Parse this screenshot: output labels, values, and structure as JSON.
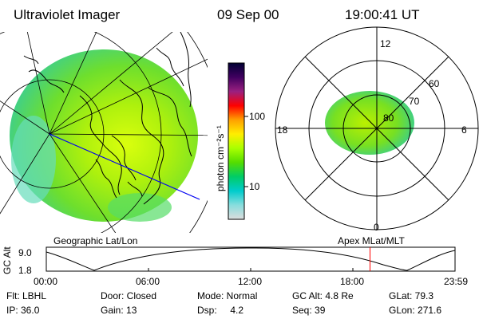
{
  "header": {
    "title": "Ultraviolet Imager",
    "date": "09 Sep 00",
    "time": "19:00:41 UT"
  },
  "colorbar": {
    "unit_label": "photon cm⁻²s⁻¹",
    "ticks": [
      "100",
      "10"
    ],
    "scale": "log",
    "colors": [
      "#000033",
      "#400060",
      "#9a2080",
      "#ff0000",
      "#ffa000",
      "#ffee00",
      "#aaff00",
      "#55dd00",
      "#00cc66",
      "#00cccc",
      "#88dddd",
      "#dddddd"
    ]
  },
  "left_panel": {
    "label": "Geographic Lat/Lon"
  },
  "right_panel": {
    "label": "Apex  MLat/MLT",
    "mlt_labels": {
      "top": "12",
      "left": "18",
      "right": "6",
      "bottom": "0"
    },
    "lat_labels": [
      "60",
      "70",
      "80"
    ]
  },
  "altitude_plot": {
    "ylabel": "GC Alt",
    "yticks": [
      "9.0",
      "1.8"
    ],
    "xticks": [
      "00:00",
      "06:00",
      "12:00",
      "18:00",
      "23:59"
    ],
    "marker_color": "#ff0000",
    "marker_time_hours": 19.01
  },
  "status": {
    "flt": "Flt: LBHL",
    "door": "Door: Closed",
    "mode": "Mode: Normal",
    "gc_alt": "GC Alt: 4.8 Re",
    "glat": "GLat:  79.3",
    "ip": "IP: 36.0",
    "gain": "Gain: 13",
    "dsp": "Dsp:     4.2",
    "seq": "Seq: 39",
    "glon": "GLon: 271.6"
  }
}
